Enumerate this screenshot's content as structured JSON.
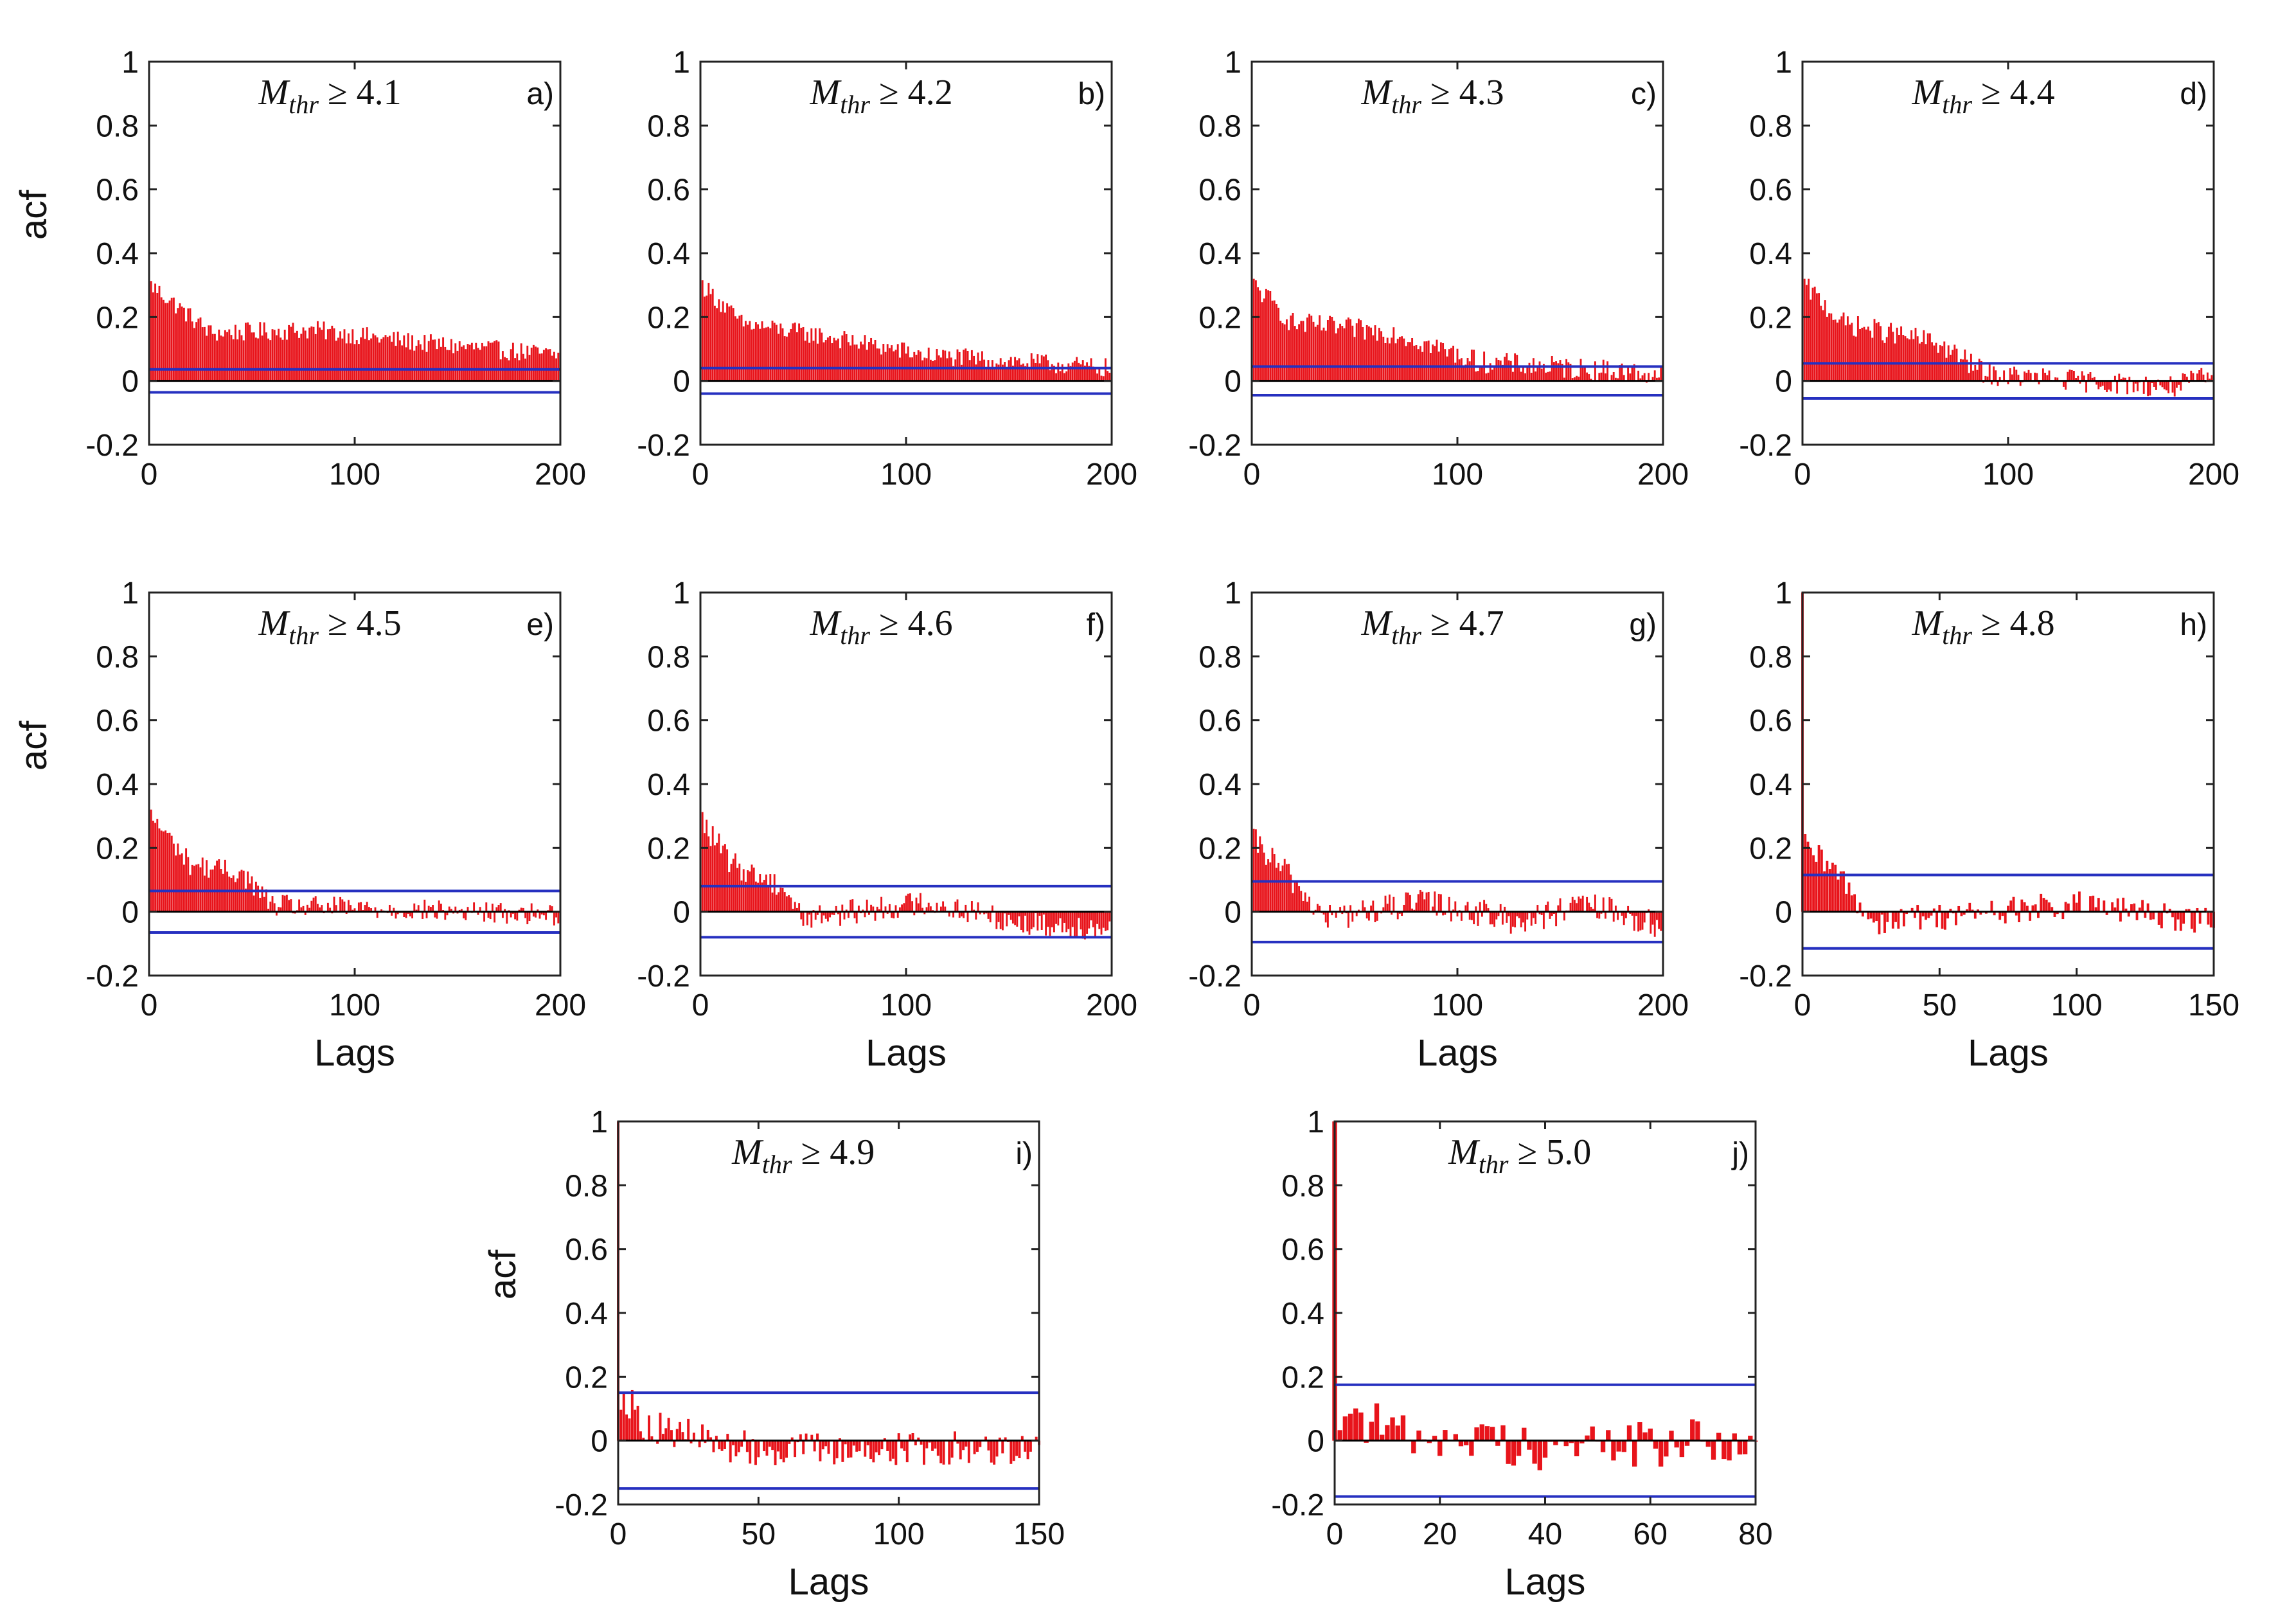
{
  "colors": {
    "acf": "#e8141b",
    "bound": "#2630c0",
    "axis": "#222222",
    "zero": "#000000"
  },
  "figure": {
    "x_axis_label": "Lags",
    "y_axis_label": "acf"
  },
  "chart_data": [
    {
      "panel": "a)",
      "type": "bar",
      "threshold_symbol": "M",
      "threshold_subscript": "thr",
      "threshold_value": "≥ 4.1",
      "xlim": [
        0,
        200
      ],
      "ylim": [
        -0.2,
        1
      ],
      "xticks": [
        "0",
        "100",
        "200"
      ],
      "yticks": [
        "1",
        "0.8",
        "0.6",
        "0.4",
        "0.2",
        "0",
        "-0.2"
      ],
      "confidence_bound": 0.036,
      "show_xlabel": false,
      "show_ylabel": true,
      "acf_profile": [
        [
          0,
          1.0
        ],
        [
          1,
          0.3
        ],
        [
          30,
          0.15
        ],
        [
          80,
          0.16
        ],
        [
          130,
          0.12
        ],
        [
          200,
          0.08
        ]
      ],
      "noise": 0.03,
      "max_lag": 200
    },
    {
      "panel": "b)",
      "type": "bar",
      "threshold_symbol": "M",
      "threshold_subscript": "thr",
      "threshold_value": "≥ 4.2",
      "xlim": [
        0,
        200
      ],
      "ylim": [
        -0.2,
        1
      ],
      "xticks": [
        "0",
        "100",
        "200"
      ],
      "yticks": [
        "1",
        "0.8",
        "0.6",
        "0.4",
        "0.2",
        "0",
        "-0.2"
      ],
      "confidence_bound": 0.04,
      "show_xlabel": false,
      "show_ylabel": false,
      "acf_profile": [
        [
          0,
          1.0
        ],
        [
          1,
          0.3
        ],
        [
          20,
          0.18
        ],
        [
          60,
          0.14
        ],
        [
          110,
          0.08
        ],
        [
          200,
          0.04
        ]
      ],
      "noise": 0.03,
      "max_lag": 200
    },
    {
      "panel": "c)",
      "type": "bar",
      "threshold_symbol": "M",
      "threshold_subscript": "thr",
      "threshold_value": "≥ 4.3",
      "xlim": [
        0,
        200
      ],
      "ylim": [
        -0.2,
        1
      ],
      "xticks": [
        "0",
        "100",
        "200"
      ],
      "yticks": [
        "1",
        "0.8",
        "0.6",
        "0.4",
        "0.2",
        "0",
        "-0.2"
      ],
      "confidence_bound": 0.045,
      "show_xlabel": false,
      "show_ylabel": false,
      "acf_profile": [
        [
          0,
          1.0
        ],
        [
          1,
          0.3
        ],
        [
          20,
          0.18
        ],
        [
          70,
          0.15
        ],
        [
          110,
          0.06
        ],
        [
          200,
          0.02
        ]
      ],
      "noise": 0.035,
      "max_lag": 200
    },
    {
      "panel": "d)",
      "type": "bar",
      "threshold_symbol": "M",
      "threshold_subscript": "thr",
      "threshold_value": "≥ 4.4",
      "xlim": [
        0,
        200
      ],
      "ylim": [
        -0.2,
        1
      ],
      "xticks": [
        "0",
        "100",
        "200"
      ],
      "yticks": [
        "1",
        "0.8",
        "0.6",
        "0.4",
        "0.2",
        "0",
        "-0.2"
      ],
      "confidence_bound": 0.055,
      "show_xlabel": false,
      "show_ylabel": false,
      "acf_profile": [
        [
          0,
          1.0
        ],
        [
          1,
          0.3
        ],
        [
          20,
          0.18
        ],
        [
          65,
          0.12
        ],
        [
          90,
          0.02
        ],
        [
          180,
          -0.02
        ],
        [
          200,
          0.02
        ]
      ],
      "noise": 0.035,
      "max_lag": 200
    },
    {
      "panel": "e)",
      "type": "bar",
      "threshold_symbol": "M",
      "threshold_subscript": "thr",
      "threshold_value": "≥ 4.5",
      "xlim": [
        0,
        200
      ],
      "ylim": [
        -0.2,
        1
      ],
      "xticks": [
        "0",
        "100",
        "200"
      ],
      "yticks": [
        "1",
        "0.8",
        "0.6",
        "0.4",
        "0.2",
        "0",
        "-0.2"
      ],
      "confidence_bound": 0.065,
      "show_xlabel": true,
      "show_ylabel": true,
      "acf_profile": [
        [
          0,
          1.0
        ],
        [
          1,
          0.3
        ],
        [
          20,
          0.15
        ],
        [
          45,
          0.12
        ],
        [
          60,
          0.02
        ],
        [
          200,
          -0.01
        ]
      ],
      "noise": 0.035,
      "max_lag": 200
    },
    {
      "panel": "f)",
      "type": "bar",
      "threshold_symbol": "M",
      "threshold_subscript": "thr",
      "threshold_value": "≥ 4.6",
      "xlim": [
        0,
        200
      ],
      "ylim": [
        -0.2,
        1
      ],
      "xticks": [
        "0",
        "100",
        "200"
      ],
      "yticks": [
        "1",
        "0.8",
        "0.6",
        "0.4",
        "0.2",
        "0",
        "-0.2"
      ],
      "confidence_bound": 0.08,
      "show_xlabel": true,
      "show_ylabel": false,
      "acf_profile": [
        [
          0,
          1.0
        ],
        [
          1,
          0.28
        ],
        [
          15,
          0.15
        ],
        [
          40,
          0.08
        ],
        [
          50,
          -0.02
        ],
        [
          110,
          0.03
        ],
        [
          160,
          -0.04
        ],
        [
          200,
          -0.05
        ]
      ],
      "noise": 0.04,
      "max_lag": 200
    },
    {
      "panel": "g)",
      "type": "bar",
      "threshold_symbol": "M",
      "threshold_subscript": "thr",
      "threshold_value": "≥ 4.7",
      "xlim": [
        0,
        200
      ],
      "ylim": [
        -0.2,
        1
      ],
      "xticks": [
        "0",
        "100",
        "200"
      ],
      "yticks": [
        "1",
        "0.8",
        "0.6",
        "0.4",
        "0.2",
        "0",
        "-0.2"
      ],
      "confidence_bound": 0.095,
      "show_xlabel": true,
      "show_ylabel": false,
      "acf_profile": [
        [
          0,
          1.0
        ],
        [
          1,
          0.22
        ],
        [
          20,
          0.1
        ],
        [
          35,
          -0.02
        ],
        [
          85,
          0.03
        ],
        [
          130,
          -0.03
        ],
        [
          165,
          0.02
        ],
        [
          200,
          -0.05
        ]
      ],
      "noise": 0.045,
      "max_lag": 200
    },
    {
      "panel": "h)",
      "type": "bar",
      "threshold_symbol": "M",
      "threshold_subscript": "thr",
      "threshold_value": "≥ 4.8",
      "xlim": [
        0,
        150
      ],
      "ylim": [
        -0.2,
        1
      ],
      "xticks": [
        "0",
        "50",
        "100",
        "150"
      ],
      "yticks": [
        "1",
        "0.8",
        "0.6",
        "0.4",
        "0.2",
        "0",
        "-0.2"
      ],
      "confidence_bound": 0.115,
      "show_xlabel": true,
      "show_ylabel": false,
      "acf_profile": [
        [
          0,
          1.0
        ],
        [
          1,
          0.2
        ],
        [
          15,
          0.1
        ],
        [
          25,
          -0.03
        ],
        [
          100,
          0.02
        ],
        [
          150,
          -0.03
        ]
      ],
      "noise": 0.045,
      "max_lag": 150
    },
    {
      "panel": "i)",
      "type": "bar",
      "threshold_symbol": "M",
      "threshold_subscript": "thr",
      "threshold_value": "≥ 4.9",
      "xlim": [
        0,
        150
      ],
      "ylim": [
        -0.2,
        1
      ],
      "xticks": [
        "0",
        "50",
        "100",
        "150"
      ],
      "yticks": [
        "1",
        "0.8",
        "0.6",
        "0.4",
        "0.2",
        "0",
        "-0.2"
      ],
      "confidence_bound": 0.15,
      "show_xlabel": true,
      "show_ylabel": true,
      "acf_profile": [
        [
          0,
          1.0
        ],
        [
          1,
          0.15
        ],
        [
          10,
          0.05
        ],
        [
          40,
          -0.02
        ],
        [
          80,
          -0.03
        ],
        [
          150,
          -0.02
        ]
      ],
      "noise": 0.055,
      "max_lag": 150
    },
    {
      "panel": "j)",
      "type": "bar",
      "threshold_symbol": "M",
      "threshold_subscript": "thr",
      "threshold_value": "≥ 5.0",
      "xlim": [
        0,
        80
      ],
      "ylim": [
        -0.2,
        1
      ],
      "xticks": [
        "0",
        "20",
        "40",
        "60",
        "80"
      ],
      "yticks": [
        "1",
        "0.8",
        "0.6",
        "0.4",
        "0.2",
        "0",
        "-0.2"
      ],
      "confidence_bound": 0.175,
      "show_xlabel": true,
      "show_ylabel": false,
      "acf_profile": [
        [
          0,
          1.0
        ],
        [
          1,
          0.1
        ],
        [
          10,
          0.03
        ],
        [
          40,
          -0.02
        ],
        [
          80,
          0.0
        ]
      ],
      "noise": 0.075,
      "max_lag": 80
    }
  ]
}
